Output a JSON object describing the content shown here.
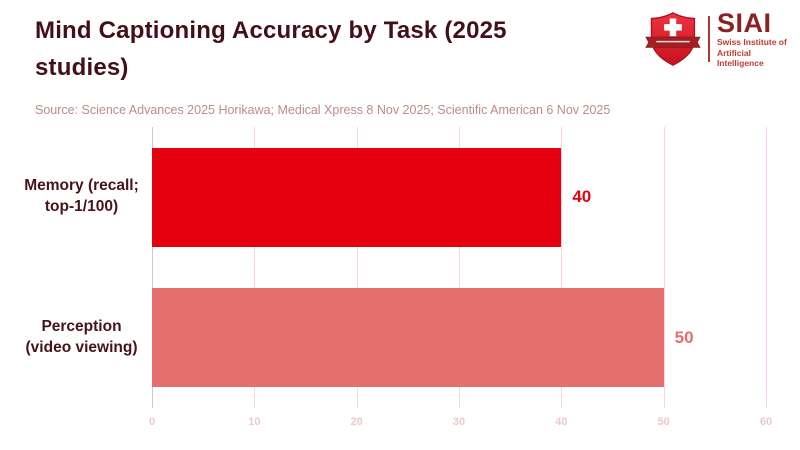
{
  "header": {
    "title": "Mind Captioning Accuracy by Task (2025 studies)",
    "source": "Source: Science Advances 2025 Horikawa; Medical Xpress 8 Nov 2025; Scientific American 6 Nov 2025"
  },
  "logo": {
    "name": "SIAI",
    "subtitle_line1": "Swiss Institute of",
    "subtitle_line2": "Artificial Intelligence",
    "icon": "swiss-shield-icon"
  },
  "chart_data": {
    "type": "bar",
    "orientation": "horizontal",
    "title": "Mind Captioning Accuracy by Task (2025 studies)",
    "categories": [
      "Memory (recall; top-1/100)",
      "Perception (video viewing)"
    ],
    "values": [
      40,
      50
    ],
    "bar_colors": [
      "#e4000f",
      "#e46f6c"
    ],
    "value_label_colors": [
      "#e4000f",
      "#e46f6c"
    ],
    "xlabel": "",
    "ylabel": "",
    "xlim": [
      0,
      60
    ],
    "xticks": [
      0,
      10,
      20,
      30,
      40,
      50,
      60
    ],
    "grid": true,
    "legend": false
  },
  "colors": {
    "title_text": "#431019",
    "source_text": "#bd8b8b",
    "category_text": "#47121a",
    "grid_pink": "#f7d8d8",
    "grid_zero": "#c9c9c9",
    "tick_text": "#eccaca",
    "logo_dark_red": "#8e2025",
    "logo_red": "#c23b31",
    "shield_red": "#e0242e",
    "ribbon_red": "#a51e24",
    "background": "#ffffff"
  }
}
